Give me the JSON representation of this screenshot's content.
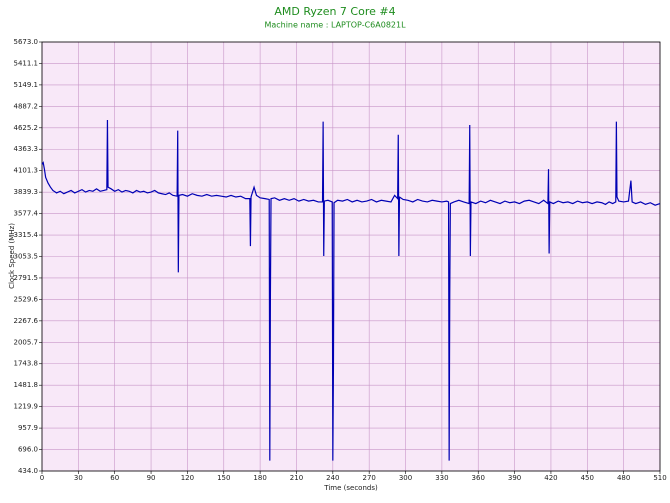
{
  "chart_data": {
    "type": "line",
    "title": "AMD Ryzen 7 Core #4",
    "subtitle": "Machine name : LAPTOP-C6A0821L",
    "x_label": "Time (seconds)",
    "y_label": "Clock Speed (MHz)",
    "color": "#0000b4",
    "background": "#f8e8f8",
    "grid": true,
    "xlim": [
      0,
      510
    ],
    "xticks": [
      0,
      30,
      60,
      90,
      120,
      150,
      180,
      210,
      240,
      270,
      300,
      330,
      360,
      390,
      420,
      450,
      480,
      510
    ],
    "ylim": [
      434,
      5673
    ],
    "yticks": [
      {
        "value": 434,
        "label": "434.0"
      },
      {
        "value": 696,
        "label": "696.0"
      },
      957.9,
      1219.9,
      1481.8,
      1743.8,
      2005.7,
      2267.6,
      2529.6,
      2791.5,
      3053.5,
      3315.4,
      3577.4,
      3839.3,
      4101.3,
      4363.3,
      4625.2,
      4887.2,
      5149.1,
      5411.1,
      {
        "value": 5673,
        "label": "5673.0"
      }
    ],
    "x": [
      0,
      1,
      2,
      3,
      5,
      7,
      9,
      12,
      15,
      18,
      21,
      24,
      27,
      30,
      33,
      36,
      39,
      42,
      45,
      48,
      51,
      53.5,
      54,
      54.5,
      57,
      60,
      63,
      66,
      69,
      72,
      75,
      78,
      81,
      84,
      87,
      90,
      93,
      96,
      99,
      102,
      105,
      108,
      111.5,
      112,
      112.5,
      113,
      116,
      120,
      124,
      128,
      132,
      136,
      140,
      144,
      148,
      152,
      156,
      160,
      164,
      168,
      171.5,
      172,
      172.5,
      175,
      177,
      180,
      184,
      187.5,
      188,
      188.5,
      189,
      192,
      196,
      200,
      204,
      208,
      212,
      216,
      220,
      224,
      228,
      231.5,
      232,
      232.5,
      233,
      236,
      239.5,
      240,
      240.5,
      241,
      244,
      248,
      252,
      256,
      260,
      264,
      268,
      272,
      276,
      280,
      284,
      288,
      291,
      293.5,
      294,
      294.5,
      295,
      298,
      302,
      306,
      310,
      314,
      318,
      322,
      326,
      330,
      334,
      335.5,
      336,
      336.5,
      337,
      340,
      344,
      348,
      352.5,
      353,
      353.5,
      354,
      358,
      362,
      366,
      370,
      374,
      378,
      382,
      386,
      390,
      394,
      398,
      402,
      406,
      410,
      414,
      417.5,
      418,
      418.5,
      419,
      422,
      426,
      430,
      434,
      438,
      442,
      446,
      450,
      454,
      458,
      462,
      465,
      468,
      471,
      473.5,
      474,
      474.5,
      476,
      480,
      484,
      486,
      487,
      490,
      494,
      498,
      502,
      506,
      510
    ],
    "values": [
      4180,
      4200,
      4120,
      4020,
      3950,
      3900,
      3860,
      3830,
      3850,
      3820,
      3840,
      3860,
      3830,
      3850,
      3870,
      3840,
      3860,
      3850,
      3880,
      3850,
      3860,
      3870,
      4720,
      3900,
      3880,
      3850,
      3870,
      3840,
      3860,
      3850,
      3830,
      3860,
      3840,
      3850,
      3830,
      3840,
      3860,
      3830,
      3820,
      3810,
      3830,
      3800,
      3790,
      4590,
      2860,
      3800,
      3810,
      3790,
      3820,
      3800,
      3790,
      3810,
      3790,
      3800,
      3790,
      3780,
      3800,
      3780,
      3790,
      3760,
      3760,
      3180,
      3780,
      3900,
      3800,
      3770,
      3760,
      3750,
      560,
      2600,
      3760,
      3770,
      3740,
      3760,
      3740,
      3760,
      3730,
      3750,
      3730,
      3740,
      3720,
      3720,
      4700,
      3060,
      3730,
      3740,
      3720,
      560,
      1680,
      3710,
      3740,
      3730,
      3750,
      3720,
      3740,
      3720,
      3730,
      3750,
      3720,
      3740,
      3730,
      3720,
      3800,
      3760,
      4540,
      3060,
      3780,
      3750,
      3740,
      3720,
      3750,
      3730,
      3720,
      3740,
      3730,
      3720,
      3730,
      3720,
      560,
      2600,
      3700,
      3720,
      3740,
      3720,
      3700,
      4660,
      3060,
      3720,
      3700,
      3730,
      3710,
      3740,
      3720,
      3700,
      3730,
      3710,
      3720,
      3700,
      3730,
      3740,
      3720,
      3700,
      3740,
      3700,
      4120,
      3090,
      3720,
      3700,
      3730,
      3710,
      3720,
      3700,
      3730,
      3710,
      3720,
      3700,
      3720,
      3710,
      3690,
      3720,
      3700,
      3720,
      4700,
      3780,
      3730,
      3720,
      3730,
      3980,
      3720,
      3700,
      3720,
      3690,
      3710,
      3680,
      3700
    ]
  }
}
